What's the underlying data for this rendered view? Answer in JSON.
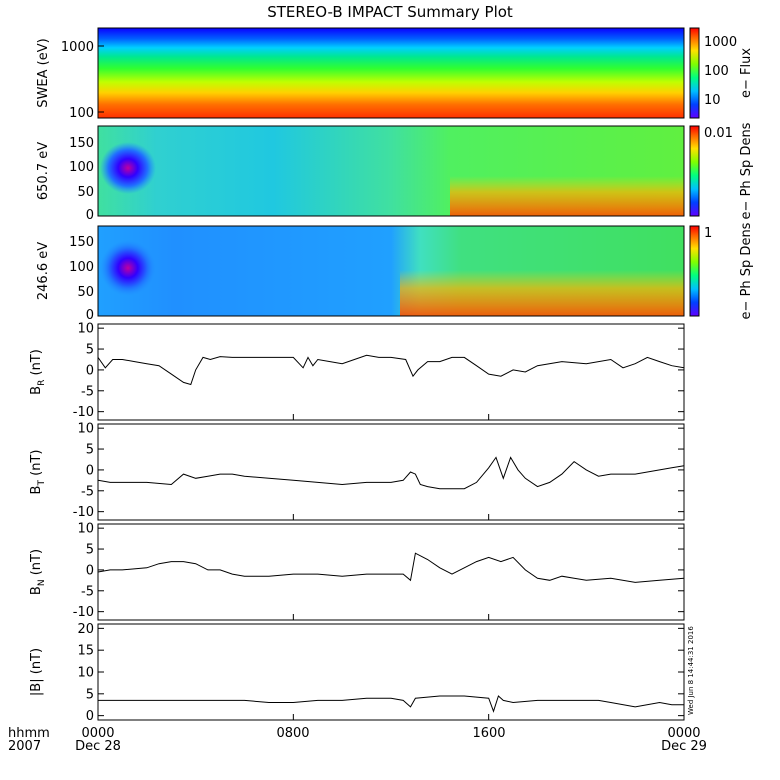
{
  "title": "STEREO-B IMPACT Summary Plot",
  "x_axis": {
    "row1_label": "hhmm",
    "row2_label": "2007",
    "ticks": [
      {
        "time": "0000",
        "date": "Dec 28",
        "hour": 0
      },
      {
        "time": "0800",
        "date": "",
        "hour": 8
      },
      {
        "time": "1600",
        "date": "",
        "hour": 16
      },
      {
        "time": "0000",
        "date": "Dec 29",
        "hour": 24
      }
    ]
  },
  "timestamp": "Wed Jun 8 14:44:31 2016",
  "colors": {
    "trace": "#000000",
    "frame": "#000000"
  },
  "spectrograms": [
    {
      "id": "swea",
      "ylabel": "SWEA (eV)",
      "scale": "log",
      "yticks": [
        "1000",
        "100"
      ],
      "cbar_label": "e− Flux",
      "cbar_ticks": [
        "1000",
        "100",
        "10"
      ],
      "colormap": "rainbow"
    },
    {
      "id": "pad650",
      "ylabel": "650.7 eV",
      "scale": "linear",
      "yticks": [
        "150",
        "100",
        "50",
        "0"
      ],
      "cbar_label": "e− Ph Sp Dens",
      "cbar_ticks": [
        "0.01"
      ],
      "colormap": "rainbow"
    },
    {
      "id": "pad246",
      "ylabel": "246.6 eV",
      "scale": "linear",
      "yticks": [
        "150",
        "100",
        "50",
        "0"
      ],
      "cbar_label": "e− Ph Sp Dens",
      "cbar_ticks": [
        "1"
      ],
      "colormap": "rainbow"
    }
  ],
  "chart_data": [
    {
      "type": "line",
      "id": "br",
      "ylabel_main": "B",
      "ylabel_sub": "R",
      "ylabel_unit": " (nT)",
      "ylim": [
        -12,
        11
      ],
      "yticks": [
        10,
        5,
        0,
        -5,
        -10
      ],
      "x_hours": [
        0,
        0.3,
        0.6,
        1,
        1.5,
        2,
        2.5,
        3,
        3.5,
        3.8,
        4,
        4.3,
        4.6,
        5,
        5.5,
        6,
        7,
        8,
        8.4,
        8.6,
        8.8,
        9,
        9.5,
        10,
        10.5,
        11,
        11.5,
        12,
        12.6,
        12.9,
        13.1,
        13.5,
        14,
        14.5,
        15,
        15.5,
        16,
        16.5,
        17,
        17.5,
        18,
        19,
        20,
        21,
        21.5,
        22,
        22.5,
        23,
        23.5,
        24
      ],
      "values": [
        3,
        0.5,
        2.5,
        2.5,
        2,
        1.5,
        1,
        -1,
        -3,
        -3.5,
        0,
        3,
        2.5,
        3.2,
        3,
        3,
        3,
        3,
        0.5,
        3,
        1,
        2.5,
        2,
        1.5,
        2.5,
        3.5,
        3,
        3,
        2.5,
        -1.5,
        0,
        2,
        2,
        3,
        3,
        1,
        -1,
        -1.5,
        0,
        -0.5,
        1,
        2,
        1.5,
        2.5,
        0.5,
        1.5,
        3,
        2,
        1,
        0.5
      ]
    },
    {
      "type": "line",
      "id": "bt",
      "ylabel_main": "B",
      "ylabel_sub": "T",
      "ylabel_unit": " (nT)",
      "ylim": [
        -12,
        11
      ],
      "yticks": [
        10,
        5,
        0,
        -5,
        -10
      ],
      "x_hours": [
        0,
        0.5,
        1,
        2,
        3,
        3.5,
        4,
        4.5,
        5,
        5.5,
        6,
        7,
        8,
        9,
        10,
        11,
        12,
        12.5,
        12.8,
        13,
        13.2,
        13.5,
        14,
        15,
        15.5,
        16,
        16.3,
        16.6,
        16.9,
        17.2,
        17.5,
        18,
        18.5,
        19,
        19.5,
        20,
        20.5,
        21,
        22,
        23,
        23.5,
        24
      ],
      "values": [
        -2.5,
        -3,
        -3,
        -3,
        -3.5,
        -1,
        -2,
        -1.5,
        -1,
        -1,
        -1.5,
        -2,
        -2.5,
        -3,
        -3.5,
        -3,
        -3,
        -2.5,
        -0.5,
        -1,
        -3.5,
        -4,
        -4.5,
        -4.5,
        -3,
        0.5,
        3,
        -2,
        3,
        0,
        -2,
        -4,
        -3,
        -1,
        2,
        0,
        -1.5,
        -1,
        -1,
        0,
        0.5,
        1
      ]
    },
    {
      "type": "line",
      "id": "bn",
      "ylabel_main": "B",
      "ylabel_sub": "N",
      "ylabel_unit": " (nT)",
      "ylim": [
        -12,
        11
      ],
      "yticks": [
        10,
        5,
        0,
        -5,
        -10
      ],
      "x_hours": [
        0,
        0.5,
        1,
        2,
        2.5,
        3,
        3.5,
        4,
        4.5,
        5,
        5.5,
        6,
        7,
        8,
        9,
        10,
        11,
        12,
        12.5,
        12.8,
        13,
        13.5,
        14,
        14.5,
        15,
        15.5,
        16,
        16.5,
        17,
        17.5,
        18,
        18.5,
        19,
        19.5,
        20,
        21,
        22,
        23,
        24
      ],
      "values": [
        -0.5,
        0,
        0,
        0.5,
        1.5,
        2,
        2,
        1.5,
        0,
        0,
        -1,
        -1.5,
        -1.5,
        -1,
        -1,
        -1.5,
        -1,
        -1,
        -1,
        -2.5,
        4,
        2.5,
        0.5,
        -1,
        0.5,
        2,
        3,
        2,
        3,
        0,
        -2,
        -2.5,
        -1.5,
        -2,
        -2.5,
        -2,
        -3,
        -2.5,
        -2
      ]
    },
    {
      "type": "line",
      "id": "bmag",
      "ylabel_main": "|B|",
      "ylabel_sub": "",
      "ylabel_unit": " (nT)",
      "ylim": [
        -1,
        21
      ],
      "yticks": [
        20,
        15,
        10,
        5,
        0
      ],
      "x_hours": [
        0,
        1,
        2,
        3,
        4,
        5,
        6,
        7,
        8,
        9,
        10,
        11,
        12,
        12.5,
        12.8,
        13,
        14,
        15,
        16,
        16.2,
        16.4,
        16.6,
        17,
        18,
        19,
        20,
        20.5,
        21,
        22,
        23,
        23.5,
        24
      ],
      "values": [
        3.5,
        3.5,
        3.5,
        3.5,
        3.5,
        3.5,
        3.5,
        3,
        3,
        3.5,
        3.5,
        4,
        4,
        3.5,
        2,
        4,
        4.5,
        4.5,
        4,
        1,
        4.5,
        3.5,
        3,
        3.5,
        3.5,
        3.5,
        3.5,
        3,
        2,
        3,
        2.5,
        2.5
      ]
    }
  ]
}
